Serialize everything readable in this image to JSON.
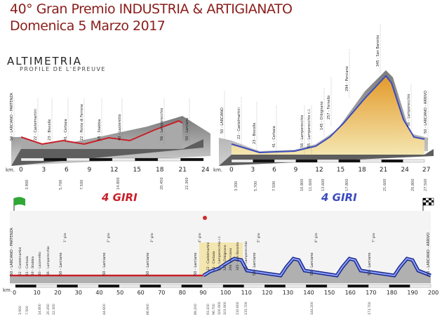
{
  "header": {
    "title_line1": "40° Gran Premio INDUSTRIA & ARTIGIANATO",
    "title_line2": "Domenica 5 Marzo 2017",
    "subtitle": "ALTIMETRIA",
    "subtitle2": "PROFILE DE L'EPREUVE"
  },
  "colors": {
    "title": "#8a1d1a",
    "red_line": "#c8202a",
    "blue_line": "#3b4bbf",
    "orange_fill": "#e8a53a",
    "profile_grey": "#8c8c8c"
  },
  "lap_badges": {
    "red": "4 GIRI",
    "blue": "4 GIRI"
  },
  "km_label": "km.",
  "left_profile": {
    "km_ticks": [
      "0",
      "3",
      "6",
      "9",
      "12",
      "15",
      "18",
      "21",
      "24"
    ],
    "places": [
      "50 - LARCIANO - PARTENZA",
      "22 - Castelmartini",
      "23 - Biscolle",
      "41 - Cerbaia",
      "22 - Ponte di Ferrone",
      "18 - Stabbia",
      "40 - Lazzeretto",
      "56 - Lamporecchio",
      "50 - Larciano"
    ],
    "distances": [
      "3.900",
      "5.700",
      "7.500",
      "14.800",
      "20.450",
      "22.300"
    ]
  },
  "right_profile": {
    "km_ticks": [
      "0",
      "3",
      "6",
      "9",
      "12",
      "15",
      "18",
      "21",
      "24",
      "27"
    ],
    "places": [
      "50 - LARCIANO",
      "22 - Castelmartini",
      "23 - Biscolle",
      "41 - Cerbaia",
      "56 - Lamporecchio",
      "55 - Lamporecchio c.l.",
      "145 - Orbignano",
      "257 - Fornello",
      "294 - Porciano",
      "345 - San Baronto",
      "56 - Lamporecchio",
      "50 - LARCIANO - ARRIVO"
    ],
    "distances": [
      "3.300",
      "5.700",
      "7.500",
      "10.800",
      "11.600",
      "13.600",
      "17.800",
      "21.600",
      "25.800",
      "27.500"
    ]
  },
  "bottom_profile": {
    "km_ticks": [
      "0",
      "10",
      "20",
      "30",
      "40",
      "50",
      "60",
      "70",
      "80",
      "90",
      "100",
      "110",
      "120",
      "130",
      "140",
      "150",
      "160",
      "170",
      "180",
      "190",
      "200"
    ],
    "start_label": "50 - LARCIANO - PARTENZA",
    "finish_label": "50 - LARCIANO - ARRIVO",
    "laps_red": [
      "1° giro",
      "2° giro",
      "3° giro",
      "4° giro"
    ],
    "laps_blue": [
      "5° giro",
      "6° giro",
      "7° giro",
      "8° giro"
    ],
    "larciano": "50 - Larciano",
    "places_mid": [
      "22 - Castelmartini",
      "41 - Cerbaia",
      "55 - Lamporecchio c.l.",
      "145 - Orbignano",
      "294 - Porciano",
      "345 - San Baronto",
      "56 - Lamporecchio"
    ],
    "places_left": [
      "22 - Castelmartini",
      "41 - Cerbaia",
      "18 - Stabbia",
      "40 - Lazzeretto",
      "56 - Lamporecchio"
    ],
    "distances_left": [
      "3.900",
      "7.500",
      "14.800",
      "20.450",
      "22.300"
    ],
    "distances_laps": [
      "44.600",
      "66.900",
      "89.200",
      "144.200",
      "171.700"
    ],
    "distances_mid": [
      "93.100",
      "96.700",
      "100.900",
      "103.900",
      "110.600",
      "115.700"
    ],
    "sprint": "R"
  }
}
